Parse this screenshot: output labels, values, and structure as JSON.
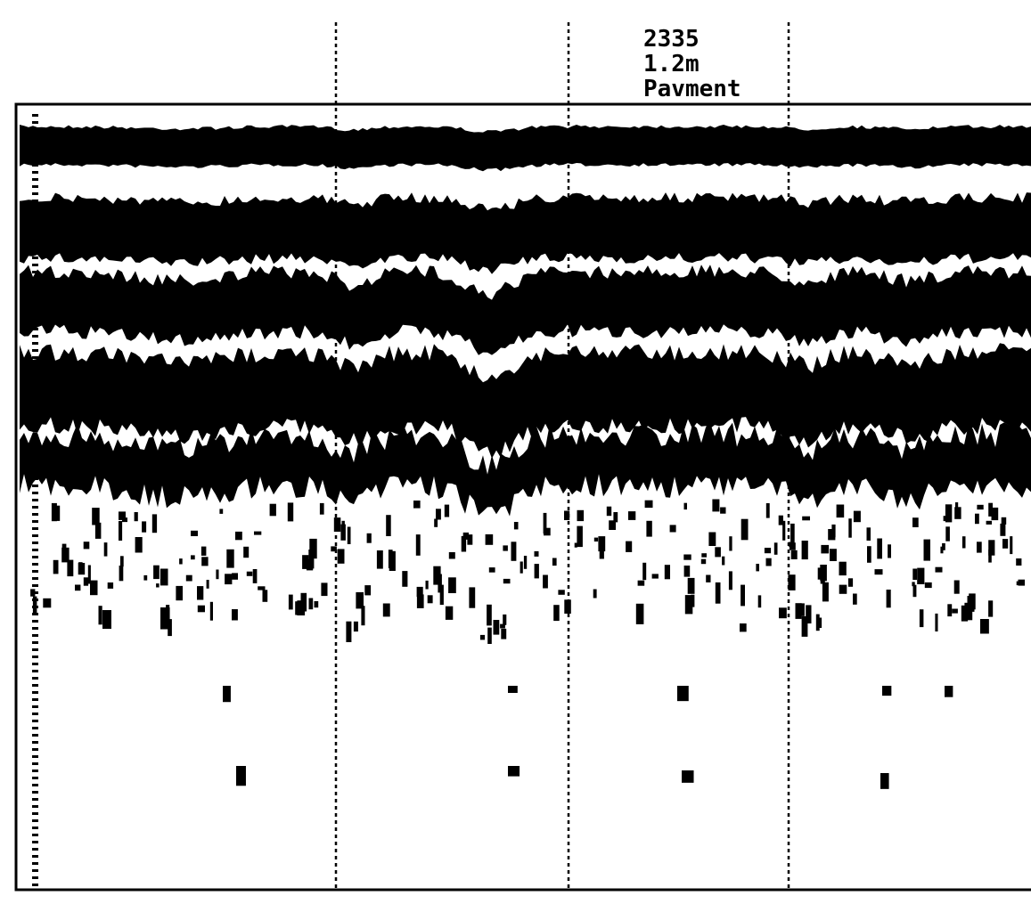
{
  "annotation": {
    "lines": [
      "2335",
      "1.2m",
      "Pavment"
    ]
  }
}
